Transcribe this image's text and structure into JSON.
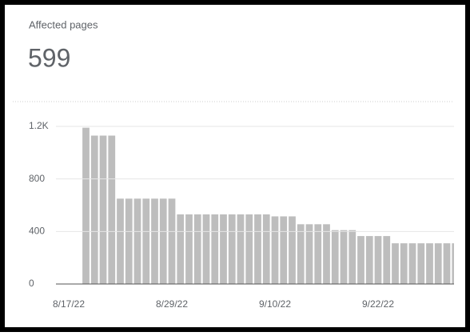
{
  "chart_data": {
    "type": "bar",
    "title": "Affected pages",
    "subtitle": "599",
    "categories": [
      "8/17/22",
      null,
      null,
      null,
      null,
      null,
      null,
      null,
      null,
      null,
      null,
      null,
      "8/29/22",
      null,
      null,
      null,
      null,
      null,
      null,
      null,
      null,
      null,
      null,
      null,
      "9/10/22",
      null,
      null,
      null,
      null,
      null,
      null,
      null,
      null,
      null,
      null,
      null,
      "9/22/22",
      null,
      null,
      null,
      null,
      null,
      null,
      null,
      null,
      null
    ],
    "values": [
      0,
      0,
      1190,
      1130,
      1130,
      1130,
      650,
      650,
      650,
      650,
      650,
      650,
      650,
      530,
      530,
      530,
      530,
      530,
      530,
      530,
      530,
      530,
      530,
      530,
      515,
      515,
      515,
      455,
      455,
      455,
      455,
      410,
      410,
      410,
      365,
      365,
      365,
      365,
      310,
      310,
      310,
      310,
      310,
      310,
      310,
      310
    ],
    "color": "#bdbdbd",
    "ylim": [
      0,
      1200
    ],
    "yticks": [
      0,
      400,
      800,
      {
        "value": 1200,
        "label": "1.2K"
      }
    ],
    "grid": true
  }
}
